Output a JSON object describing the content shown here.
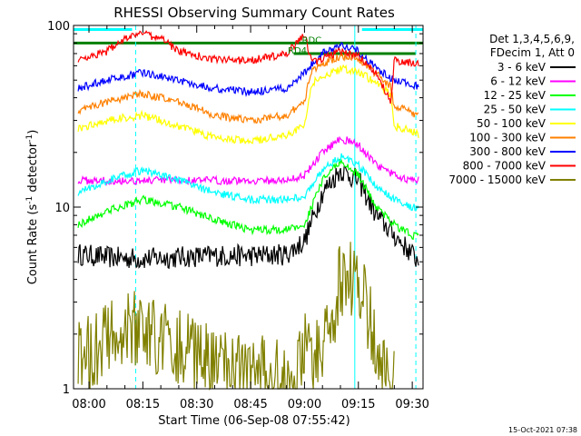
{
  "footer": {
    "timestamp": "15-Oct-2021 07:38"
  },
  "chart_data": {
    "type": "line",
    "title": "RHESSI Observing Summary Count Rates",
    "xlabel": "Start Time (06-Sep-08 07:55:42)",
    "ylabel_main": "Count Rate (s",
    "ylabel_sup1": "-1",
    "ylabel_mid": " detector",
    "ylabel_sup2": "-1",
    "ylabel_end": ")",
    "y_scale": "log",
    "ylim": [
      1,
      100
    ],
    "xlim": [
      "07:55:42",
      "09:33:00"
    ],
    "x_ticks": [
      "08:00",
      "08:15",
      "08:30",
      "08:45",
      "09:00",
      "09:15",
      "09:30"
    ],
    "y_tick_labels": [
      {
        "value": 100,
        "label": "100"
      },
      {
        "value": 10,
        "label": "10"
      },
      {
        "value": 1,
        "label": "1"
      }
    ],
    "legend": {
      "header": [
        "Det 1,3,4,5,6,9,",
        "FDecim 1, Att 0"
      ],
      "placement": "right"
    },
    "series": [
      {
        "name": "3 - 6 keV",
        "color": "#000000",
        "x": [
          "07:57",
          "08:05",
          "08:15",
          "08:25",
          "08:35",
          "08:45",
          "08:55",
          "09:00",
          "09:05",
          "09:10",
          "09:15",
          "09:20",
          "09:25",
          "09:30",
          "09:32"
        ],
        "y": [
          5.5,
          5.3,
          5.2,
          5.3,
          5.4,
          5.4,
          5.5,
          6.5,
          12,
          16,
          14,
          9,
          7,
          5.5,
          5
        ]
      },
      {
        "name": "6 - 12 keV",
        "color": "#ff00ff",
        "x": [
          "07:57",
          "08:05",
          "08:15",
          "08:25",
          "08:35",
          "08:45",
          "08:55",
          "09:00",
          "09:05",
          "09:10",
          "09:15",
          "09:20",
          "09:25",
          "09:30",
          "09:32"
        ],
        "y": [
          14,
          14,
          14,
          14,
          14,
          14,
          14,
          15,
          20,
          24,
          22,
          17,
          15,
          14,
          14
        ]
      },
      {
        "name": "12 - 25 keV",
        "color": "#00ff00",
        "x": [
          "07:57",
          "08:05",
          "08:15",
          "08:25",
          "08:35",
          "08:45",
          "08:55",
          "09:00",
          "09:05",
          "09:10",
          "09:15",
          "09:20",
          "09:25",
          "09:30",
          "09:32"
        ],
        "y": [
          8,
          9.5,
          11,
          10,
          8.5,
          7.5,
          7.5,
          8,
          14,
          18,
          15,
          10,
          8,
          7,
          7
        ]
      },
      {
        "name": "25 - 50 keV",
        "color": "#00ffff",
        "x": [
          "07:57",
          "08:05",
          "08:15",
          "08:25",
          "08:35",
          "08:45",
          "08:55",
          "09:00",
          "09:05",
          "09:10",
          "09:15",
          "09:20",
          "09:25",
          "09:30",
          "09:32"
        ],
        "y": [
          12,
          14,
          16,
          14,
          12,
          11,
          11,
          11.5,
          16,
          19,
          17,
          13,
          11,
          10,
          10
        ]
      },
      {
        "name": "50 - 100 keV",
        "color": "#ffff00",
        "x": [
          "07:57",
          "08:05",
          "08:15",
          "08:25",
          "08:35",
          "08:45",
          "08:55",
          "09:00",
          "09:02",
          "09:10",
          "09:15",
          "09:20",
          "09:24",
          "09:25",
          "09:30",
          "09:32"
        ],
        "y": [
          27,
          30,
          32,
          28,
          24,
          23,
          25,
          28,
          48,
          58,
          56,
          48,
          42,
          28,
          26,
          25
        ]
      },
      {
        "name": "100 - 300 keV",
        "color": "#ff8000",
        "x": [
          "07:57",
          "08:05",
          "08:15",
          "08:25",
          "08:35",
          "08:45",
          "08:55",
          "09:00",
          "09:02",
          "09:10",
          "09:15",
          "09:20",
          "09:24",
          "09:25",
          "09:30",
          "09:32"
        ],
        "y": [
          34,
          38,
          42,
          38,
          32,
          30,
          32,
          38,
          57,
          68,
          66,
          54,
          46,
          36,
          33,
          32
        ]
      },
      {
        "name": "300 - 800 keV",
        "color": "#0000ff",
        "x": [
          "07:57",
          "08:05",
          "08:15",
          "08:25",
          "08:35",
          "08:45",
          "08:55",
          "09:00",
          "09:05",
          "09:10",
          "09:15",
          "09:20",
          "09:25",
          "09:30",
          "09:32"
        ],
        "y": [
          45,
          50,
          55,
          50,
          45,
          43,
          45,
          55,
          70,
          78,
          72,
          58,
          50,
          47,
          46
        ]
      },
      {
        "name": "800 - 7000 keV",
        "color": "#ff0000",
        "x": [
          "07:57",
          "08:05",
          "08:10",
          "08:15",
          "08:20",
          "08:25",
          "08:35",
          "08:45",
          "08:55",
          "09:00",
          "09:02",
          "09:10",
          "09:15",
          "09:20",
          "09:24",
          "09:25",
          "09:30",
          "09:32"
        ],
        "y": [
          65,
          72,
          85,
          90,
          85,
          72,
          65,
          64,
          70,
          90,
          62,
          72,
          68,
          54,
          38,
          64,
          62,
          62
        ]
      },
      {
        "name": "7000 - 15000 keV",
        "color": "#808000",
        "x": [
          "07:57",
          "08:05",
          "08:12",
          "08:20",
          "08:28",
          "08:35",
          "08:58",
          "09:00",
          "09:02",
          "09:05",
          "09:08",
          "09:10",
          "09:12",
          "09:15",
          "09:18",
          "09:20",
          "09:22",
          "09:25"
        ],
        "y": [
          1.5,
          1.8,
          2.2,
          1.9,
          1.6,
          1.3,
          1.2,
          1.6,
          1.4,
          1.8,
          2.6,
          4.0,
          4.3,
          3.6,
          2.6,
          1.8,
          1.3,
          1
        ]
      }
    ],
    "state_bars": [
      {
        "color": "#00ffff",
        "value": 95,
        "x_start": "07:55:42",
        "x_end": "08:12"
      },
      {
        "color": "#00ffff",
        "value": 95,
        "x_start": "09:16",
        "x_end": "09:33"
      },
      {
        "color": "#008000",
        "value": 80,
        "x_start": "07:55:42",
        "x_end": "09:33"
      },
      {
        "color": "#008000",
        "value": 70,
        "x_start": "08:57",
        "x_end": "09:31"
      }
    ],
    "markers": [
      {
        "x": "08:13",
        "style": "dashed",
        "color": "#00ffff"
      },
      {
        "x": "09:14",
        "style": "solid",
        "color": "#00ffff"
      },
      {
        "x": "09:31",
        "style": "dashed",
        "color": "#00ffff"
      }
    ],
    "annotations": [
      {
        "text": "RD4",
        "x": "08:58",
        "y": 70,
        "color": "#008000"
      },
      {
        "text": "RDC",
        "x": "09:02",
        "y": 80,
        "color": "#008000"
      }
    ]
  }
}
